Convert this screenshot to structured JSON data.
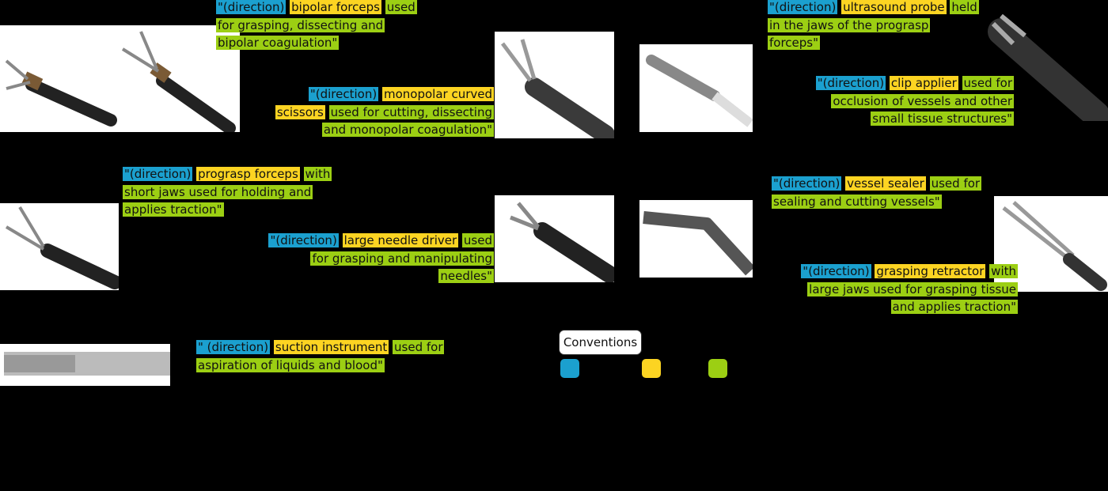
{
  "captions": [
    {
      "id": "bipolar-forceps",
      "lines": [
        [
          "\"(direction)",
          "b",
          " ",
          "n",
          "bipolar forceps",
          "y",
          " ",
          "n",
          "used",
          "g"
        ],
        [
          "for grasping, dissecting and",
          "g"
        ],
        [
          "bipolar coagulation\"",
          "g"
        ]
      ]
    },
    {
      "id": "monopolar-scissors",
      "lines": [
        [
          "\"(direction)",
          "b",
          " ",
          "n",
          "monopolar curved",
          "y"
        ],
        [
          "scissors",
          "y",
          " ",
          "n",
          "used for cutting, dissecting",
          "g"
        ],
        [
          "and monopolar coagulation\"",
          "g"
        ]
      ]
    },
    {
      "id": "prograsp-forceps",
      "lines": [
        [
          "\"(direction)",
          "b",
          " ",
          "n",
          "prograsp forceps",
          "y",
          " ",
          "n",
          "with",
          "g"
        ],
        [
          "short jaws used for holding and",
          "g"
        ],
        [
          "applies traction\"",
          "g"
        ]
      ]
    },
    {
      "id": "needle-driver",
      "lines": [
        [
          "\"(direction)",
          "b",
          " ",
          "n",
          "large needle driver",
          "y",
          " ",
          "n",
          "used",
          "g"
        ],
        [
          "for grasping and manipulating",
          "g"
        ],
        [
          "needles\"",
          "g"
        ]
      ]
    },
    {
      "id": "suction",
      "lines": [
        [
          "\" (direction)",
          "b",
          " ",
          "n",
          "suction instrument",
          "y",
          " ",
          "n",
          "used for",
          "g"
        ],
        [
          "aspiration of liquids and blood\"",
          "g"
        ]
      ]
    },
    {
      "id": "ultrasound-probe",
      "lines": [
        [
          "\"(direction)",
          "b",
          " ",
          "n",
          "ultrasound probe",
          "y",
          " ",
          "n",
          "held",
          "g"
        ],
        [
          "in the jaws of the prograsp",
          "g"
        ],
        [
          "forceps\"",
          "g"
        ]
      ]
    },
    {
      "id": "clip-applier",
      "lines": [
        [
          "\"(direction)",
          "b",
          " ",
          "n",
          "clip applier",
          "y",
          " ",
          "n",
          "used for",
          "g"
        ],
        [
          "occlusion of vessels and other",
          "g"
        ],
        [
          "small tissue structures\"",
          "g"
        ]
      ]
    },
    {
      "id": "vessel-sealer",
      "lines": [
        [
          "\"(direction)",
          "b",
          " ",
          "n",
          "vessel sealer",
          "y",
          " ",
          "n",
          "used for",
          "g"
        ],
        [
          "sealing and cutting vessels\"",
          "g"
        ]
      ]
    },
    {
      "id": "grasping-retractor",
      "lines": [
        [
          "\"(direction)",
          "b",
          " ",
          "n",
          "grasping retractor",
          "y",
          " ",
          "n",
          "with",
          "g"
        ],
        [
          "large jaws used for grasping tissue",
          "g"
        ],
        [
          "and applies traction\"",
          "g"
        ]
      ]
    }
  ],
  "legend": {
    "title": "Conventions",
    "swatches": [
      "#1ba0cf",
      "#fcd422",
      "#9ccf13"
    ]
  }
}
